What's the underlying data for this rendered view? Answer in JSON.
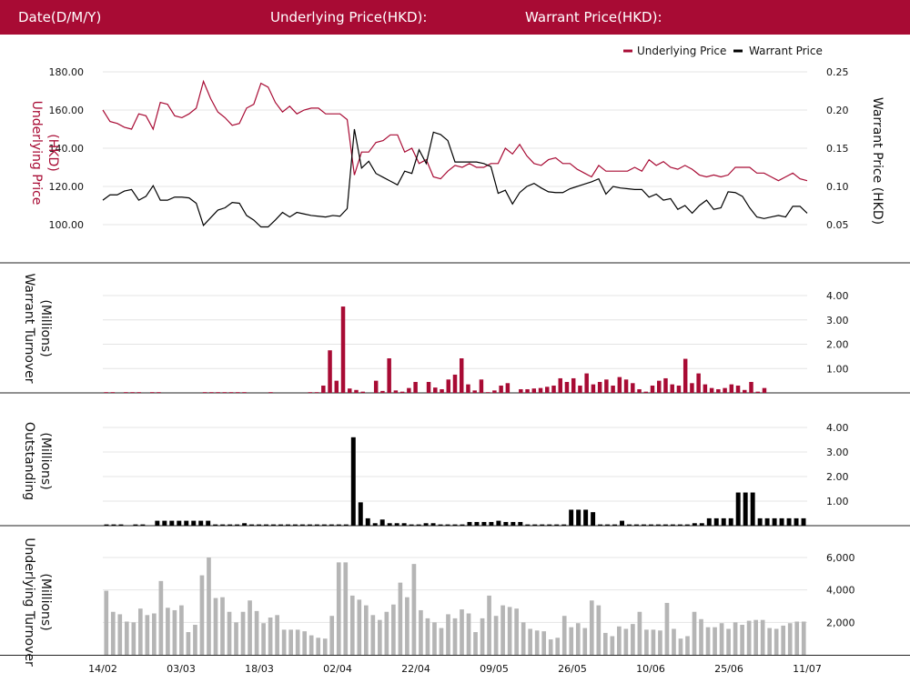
{
  "header": {
    "date_label": "Date(D/M/Y)",
    "underlying_label": "Underlying Price(HKD):",
    "warrant_label": "Warrant Price(HKD):"
  },
  "colors": {
    "header_bg": "#a80b34",
    "underlying": "#a80b34",
    "warrant": "#000000",
    "underlying_turnover": "#b5b5b5"
  },
  "chart_data": [
    {
      "type": "line",
      "legend": [
        "Underlying Price",
        "Warrant Price"
      ],
      "legend_position": "top-right",
      "left_axis": {
        "title": "Underlying Price (HKD)",
        "ticks": [
          "100.00",
          "120.00",
          "140.00",
          "160.00",
          "180.00"
        ],
        "range": [
          100,
          180
        ]
      },
      "right_axis": {
        "title": "Warrant  Price (HKD)",
        "ticks": [
          "0.05",
          "0.10",
          "0.15",
          "0.20",
          "0.25"
        ],
        "range": [
          0.05,
          0.25
        ]
      },
      "series": [
        {
          "name": "Underlying Price",
          "axis": "left",
          "values": [
            160,
            154,
            153,
            151,
            150,
            158,
            157,
            150,
            164,
            163,
            157,
            156,
            158,
            161,
            175,
            166,
            159,
            156,
            152,
            153,
            161,
            163,
            174,
            172,
            164,
            159,
            162,
            158,
            160,
            161,
            161,
            158,
            158,
            158,
            155,
            126,
            138,
            138,
            143,
            144,
            147,
            147,
            138,
            140,
            132,
            134,
            125,
            124,
            128,
            131,
            130,
            132,
            130,
            130,
            132,
            132,
            140,
            137,
            142,
            136,
            132,
            131,
            134,
            135,
            132,
            132,
            129,
            127,
            125,
            131,
            128,
            128,
            128,
            128,
            130,
            128,
            134,
            131,
            133,
            130,
            129,
            131,
            129,
            126,
            125,
            126,
            125,
            126,
            130,
            130,
            130,
            127,
            127,
            125,
            123,
            125,
            127,
            124,
            123
          ]
        },
        {
          "name": "Warrant Price",
          "axis": "right",
          "values": [
            0.082,
            0.089,
            0.089,
            0.094,
            0.096,
            0.082,
            0.087,
            0.101,
            0.082,
            0.082,
            0.086,
            0.086,
            0.085,
            0.078,
            0.049,
            0.059,
            0.069,
            0.072,
            0.079,
            0.078,
            0.062,
            0.056,
            0.047,
            0.047,
            0.056,
            0.066,
            0.06,
            0.066,
            0.064,
            0.062,
            0.061,
            0.06,
            0.062,
            0.061,
            0.071,
            0.175,
            0.124,
            0.133,
            0.117,
            0.112,
            0.107,
            0.102,
            0.12,
            0.117,
            0.148,
            0.13,
            0.171,
            0.168,
            0.16,
            0.132,
            0.132,
            0.132,
            0.132,
            0.13,
            0.126,
            0.091,
            0.095,
            0.077,
            0.092,
            0.1,
            0.104,
            0.098,
            0.093,
            0.092,
            0.092,
            0.097,
            0.1,
            0.103,
            0.106,
            0.11,
            0.09,
            0.1,
            0.098,
            0.097,
            0.096,
            0.096,
            0.086,
            0.09,
            0.082,
            0.084,
            0.07,
            0.075,
            0.065,
            0.075,
            0.082,
            0.07,
            0.072,
            0.093,
            0.092,
            0.087,
            0.072,
            0.06,
            0.058,
            0.06,
            0.062,
            0.06,
            0.074,
            0.074,
            0.065
          ]
        }
      ]
    },
    {
      "type": "bar",
      "title": "Warrant  Turnover (Millions)",
      "ticks": [
        "1.00",
        "2.00",
        "3.00",
        "4.00"
      ],
      "range": [
        0,
        4
      ],
      "values": [
        0.03,
        0.03,
        0,
        0.03,
        0.03,
        0.03,
        0,
        0.03,
        0.03,
        0,
        0,
        0,
        0,
        0,
        0,
        0.03,
        0.03,
        0.03,
        0.03,
        0.03,
        0.03,
        0.03,
        0,
        0,
        0,
        0.03,
        0,
        0,
        0,
        0,
        0,
        0.03,
        0.03,
        0.3,
        1.75,
        0.5,
        3.55,
        0.18,
        0.12,
        0.05,
        0,
        0.5,
        0.08,
        1.42,
        0.1,
        0.05,
        0.2,
        0.45,
        0,
        0.45,
        0.22,
        0.15,
        0.55,
        0.75,
        1.42,
        0.35,
        0.1,
        0.55,
        0.03,
        0.1,
        0.3,
        0.4,
        0,
        0.15,
        0.15,
        0.18,
        0.2,
        0.25,
        0.3,
        0.6,
        0.45,
        0.6,
        0.3,
        0.8,
        0.35,
        0.45,
        0.55,
        0.3,
        0.65,
        0.55,
        0.4,
        0.15,
        0.05,
        0.3,
        0.5,
        0.6,
        0.35,
        0.3,
        1.4,
        0.4,
        0.8,
        0.35,
        0.2,
        0.15,
        0.2,
        0.35,
        0.3,
        0.12,
        0.45,
        0.05,
        0.2,
        0,
        0,
        0,
        0,
        0,
        0
      ]
    },
    {
      "type": "bar",
      "title": "Outstanding (Millions)",
      "ticks": [
        "1.00",
        "2.00",
        "3.00",
        "4.00"
      ],
      "range": [
        0,
        4
      ],
      "values": [
        0.05,
        0.05,
        0.05,
        0,
        0.05,
        0.05,
        0,
        0.2,
        0.2,
        0.2,
        0.2,
        0.2,
        0.2,
        0.2,
        0.2,
        0.05,
        0.05,
        0.05,
        0.05,
        0.1,
        0.05,
        0.05,
        0.05,
        0.05,
        0.05,
        0.05,
        0.05,
        0.05,
        0.05,
        0.05,
        0.05,
        0.05,
        0.05,
        0.05,
        3.6,
        0.95,
        0.3,
        0.1,
        0.25,
        0.1,
        0.1,
        0.1,
        0.05,
        0.05,
        0.1,
        0.1,
        0.05,
        0.05,
        0.05,
        0.05,
        0.15,
        0.15,
        0.15,
        0.15,
        0.2,
        0.15,
        0.15,
        0.15,
        0.05,
        0.05,
        0.05,
        0.05,
        0.05,
        0.05,
        0.65,
        0.65,
        0.65,
        0.55,
        0.05,
        0.05,
        0.05,
        0.2,
        0.05,
        0.05,
        0.05,
        0.05,
        0.05,
        0.05,
        0.05,
        0.05,
        0.05,
        0.1,
        0.1,
        0.3,
        0.3,
        0.3,
        0.3,
        1.35,
        1.35,
        1.35,
        0.3,
        0.3,
        0.3,
        0.3,
        0.3,
        0.3,
        0.3
      ]
    },
    {
      "type": "bar",
      "title": "Underlying Turnover (Millions)",
      "ticks": [
        "2,000",
        "4,000",
        "6,000"
      ],
      "range": [
        0,
        6000
      ],
      "values": [
        3950,
        2650,
        2500,
        2050,
        2000,
        2850,
        2450,
        2550,
        4550,
        2900,
        2750,
        3050,
        1400,
        1850,
        4900,
        6000,
        3500,
        3550,
        2650,
        2000,
        2650,
        3350,
        2700,
        1950,
        2300,
        2450,
        1550,
        1550,
        1550,
        1450,
        1200,
        1050,
        1000,
        2400,
        5700,
        5700,
        3650,
        3400,
        3050,
        2450,
        2150,
        2650,
        3100,
        4450,
        3550,
        5600,
        2750,
        2250,
        2000,
        1650,
        2500,
        2250,
        2800,
        2550,
        1400,
        2250,
        3650,
        2400,
        3050,
        2950,
        2850,
        2000,
        1600,
        1500,
        1450,
        950,
        1050,
        2400,
        1700,
        1950,
        1650,
        3350,
        3050,
        1350,
        1150,
        1750,
        1600,
        1900,
        2650,
        1550,
        1550,
        1500,
        3200,
        1600,
        1000,
        1150,
        2650,
        2200,
        1700,
        1700,
        1950,
        1600,
        2000,
        1850,
        2100,
        2150,
        2150,
        1650,
        1600,
        1800,
        1950,
        2050,
        2050
      ]
    }
  ],
  "x_axis": {
    "tick_labels": [
      "14/02",
      "03/03",
      "18/03",
      "02/04",
      "22/04",
      "09/05",
      "26/05",
      "10/06",
      "25/06",
      "11/07"
    ]
  }
}
